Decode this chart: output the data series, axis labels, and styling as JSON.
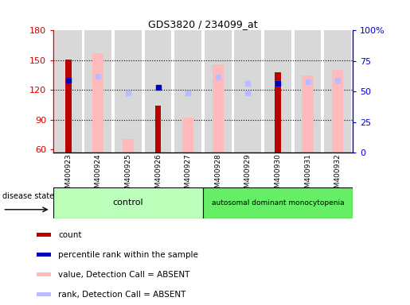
{
  "title": "GDS3820 / 234099_at",
  "samples": [
    "GSM400923",
    "GSM400924",
    "GSM400925",
    "GSM400926",
    "GSM400927",
    "GSM400928",
    "GSM400929",
    "GSM400930",
    "GSM400931",
    "GSM400932"
  ],
  "count_values": [
    151,
    null,
    null,
    104,
    null,
    null,
    null,
    138,
    null,
    null
  ],
  "value_absent": [
    null,
    157,
    71,
    null,
    92,
    146,
    null,
    null,
    135,
    140
  ],
  "rank_absent": [
    null,
    134,
    117,
    null,
    117,
    null,
    117,
    null,
    128,
    130
  ],
  "percentile_rank": [
    130,
    null,
    null,
    123,
    null,
    null,
    null,
    127,
    null,
    null
  ],
  "rank_absent_extra": [
    null,
    null,
    null,
    null,
    null,
    133,
    127,
    127,
    null,
    null
  ],
  "ylim_left": [
    57,
    180
  ],
  "ylim_right": [
    0,
    100
  ],
  "yticks_left": [
    60,
    90,
    120,
    150,
    180
  ],
  "yticks_right": [
    0,
    25,
    50,
    75,
    100
  ],
  "ytick_labels_right": [
    "0",
    "25",
    "50",
    "75",
    "100%"
  ],
  "bar_bg_color": "#d8d8d8",
  "count_color": "#bb0000",
  "percentile_color": "#0000bb",
  "value_absent_color": "#ffbbbb",
  "rank_absent_color": "#bbbbff",
  "axis_left_color": "#cc0000",
  "axis_right_color": "#0000cc",
  "control_group_color": "#aaffaa",
  "disease_group_color": "#55ee55",
  "group_control_label": "control",
  "group_disease_label": "autosomal dominant monocytopenia",
  "disease_state_label": "disease state",
  "legend_items": [
    {
      "label": "count",
      "color": "#bb0000"
    },
    {
      "label": "percentile rank within the sample",
      "color": "#0000bb"
    },
    {
      "label": "value, Detection Call = ABSENT",
      "color": "#ffbbbb"
    },
    {
      "label": "rank, Detection Call = ABSENT",
      "color": "#bbbbff"
    }
  ]
}
